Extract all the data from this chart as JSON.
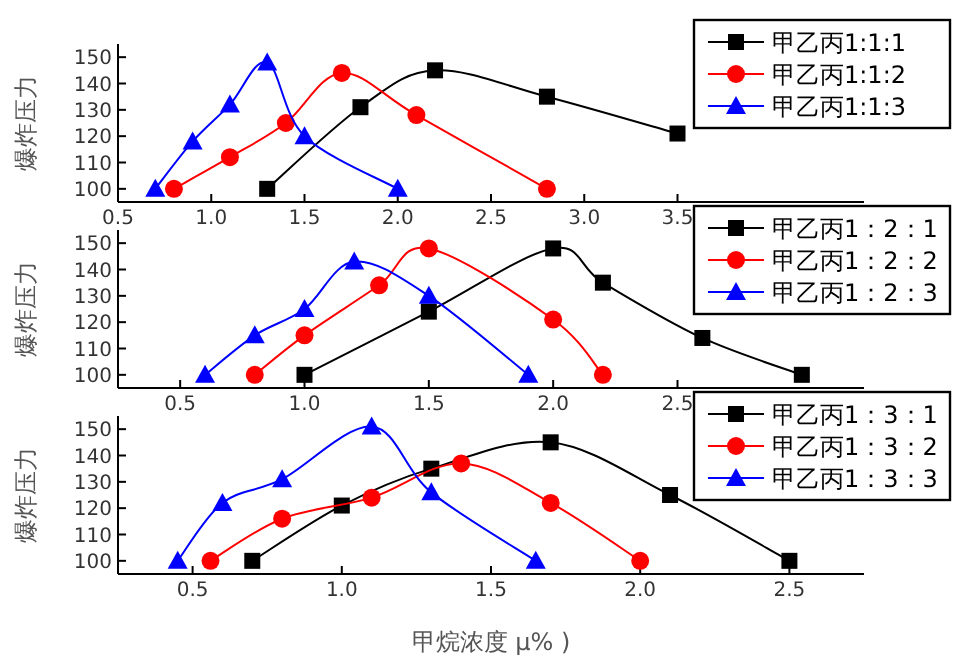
{
  "chart_data": [
    {
      "type": "line",
      "ylabel": "爆炸压力",
      "xlim": [
        0.5,
        4.5
      ],
      "xticks": [
        0.5,
        {
          "value": 1,
          "label": "1.0"
        },
        1.5,
        {
          "value": 2,
          "label": "2.0"
        },
        2.5,
        {
          "value": 3,
          "label": "3.0"
        },
        3.5
      ],
      "ylim": [
        95,
        155
      ],
      "yticks": [
        100,
        110,
        120,
        130,
        140,
        150
      ],
      "legend": "top right",
      "series": [
        {
          "name": "甲乙丙1:1:1",
          "color": "#000000",
          "marker": "square",
          "x": [
            1.3,
            1.8,
            2.2,
            2.8,
            3.5
          ],
          "values": [
            100,
            131,
            145,
            135,
            121
          ]
        },
        {
          "name": "甲乙丙1:1:2",
          "color": "#ff0000",
          "marker": "circle",
          "x": [
            0.8,
            1.1,
            1.4,
            1.7,
            2.1,
            2.8
          ],
          "values": [
            100,
            112,
            125,
            144,
            128,
            100
          ]
        },
        {
          "name": "甲乙丙1:1:3",
          "color": "#0000ff",
          "marker": "triangle",
          "x": [
            0.7,
            0.9,
            1.1,
            1.3,
            1.5,
            2.0
          ],
          "values": [
            100,
            118,
            132,
            148,
            120,
            100
          ]
        }
      ]
    },
    {
      "type": "line",
      "ylabel": "爆炸压力",
      "xlim": [
        0.25,
        3.25
      ],
      "xticks": [
        0.5,
        {
          "value": 1,
          "label": "1.0"
        },
        1.5,
        {
          "value": 2,
          "label": "2.0"
        },
        2.5
      ],
      "ylim": [
        95,
        155
      ],
      "yticks": [
        100,
        110,
        120,
        130,
        140,
        150
      ],
      "legend": "top right",
      "series": [
        {
          "name": "甲乙丙1：2：1",
          "color": "#000000",
          "marker": "square",
          "x": [
            1.0,
            1.5,
            2.0,
            2.2,
            2.6,
            3.0
          ],
          "values": [
            100,
            124,
            148,
            135,
            114,
            100
          ]
        },
        {
          "name": "甲乙丙1：2：2",
          "color": "#ff0000",
          "marker": "circle",
          "x": [
            0.8,
            1.0,
            1.3,
            1.5,
            2.0,
            2.2
          ],
          "values": [
            100,
            115,
            134,
            148,
            121,
            100
          ]
        },
        {
          "name": "甲乙丙1：2：3",
          "color": "#0000ff",
          "marker": "triangle",
          "x": [
            0.6,
            0.8,
            1.0,
            1.2,
            1.5,
            1.9
          ],
          "values": [
            100,
            115,
            125,
            143,
            130,
            100
          ]
        }
      ]
    },
    {
      "type": "line",
      "ylabel": "爆炸压力",
      "xlabel": "甲烷浓度 μ% )",
      "xlim": [
        0.25,
        2.75
      ],
      "xticks": [
        0.5,
        {
          "value": 1,
          "label": "1.0"
        },
        1.5,
        {
          "value": 2,
          "label": "2.0"
        },
        2.5
      ],
      "ylim": [
        95,
        155
      ],
      "yticks": [
        100,
        110,
        120,
        130,
        140,
        150
      ],
      "legend": "top right",
      "series": [
        {
          "name": "甲乙丙1：3：1",
          "color": "#000000",
          "marker": "square",
          "x": [
            0.7,
            1.0,
            1.3,
            1.7,
            2.1,
            2.5
          ],
          "values": [
            100,
            121,
            135,
            145,
            125,
            100
          ]
        },
        {
          "name": "甲乙丙1：3：2",
          "color": "#ff0000",
          "marker": "circle",
          "x": [
            0.56,
            0.8,
            1.1,
            1.4,
            1.7,
            2.0
          ],
          "values": [
            100,
            116,
            124,
            137,
            122,
            100
          ]
        },
        {
          "name": "甲乙丙1：3：3",
          "color": "#0000ff",
          "marker": "triangle",
          "x": [
            0.45,
            0.6,
            0.8,
            1.1,
            1.3,
            1.65
          ],
          "values": [
            100,
            122,
            131,
            151,
            126,
            100
          ]
        }
      ]
    }
  ]
}
